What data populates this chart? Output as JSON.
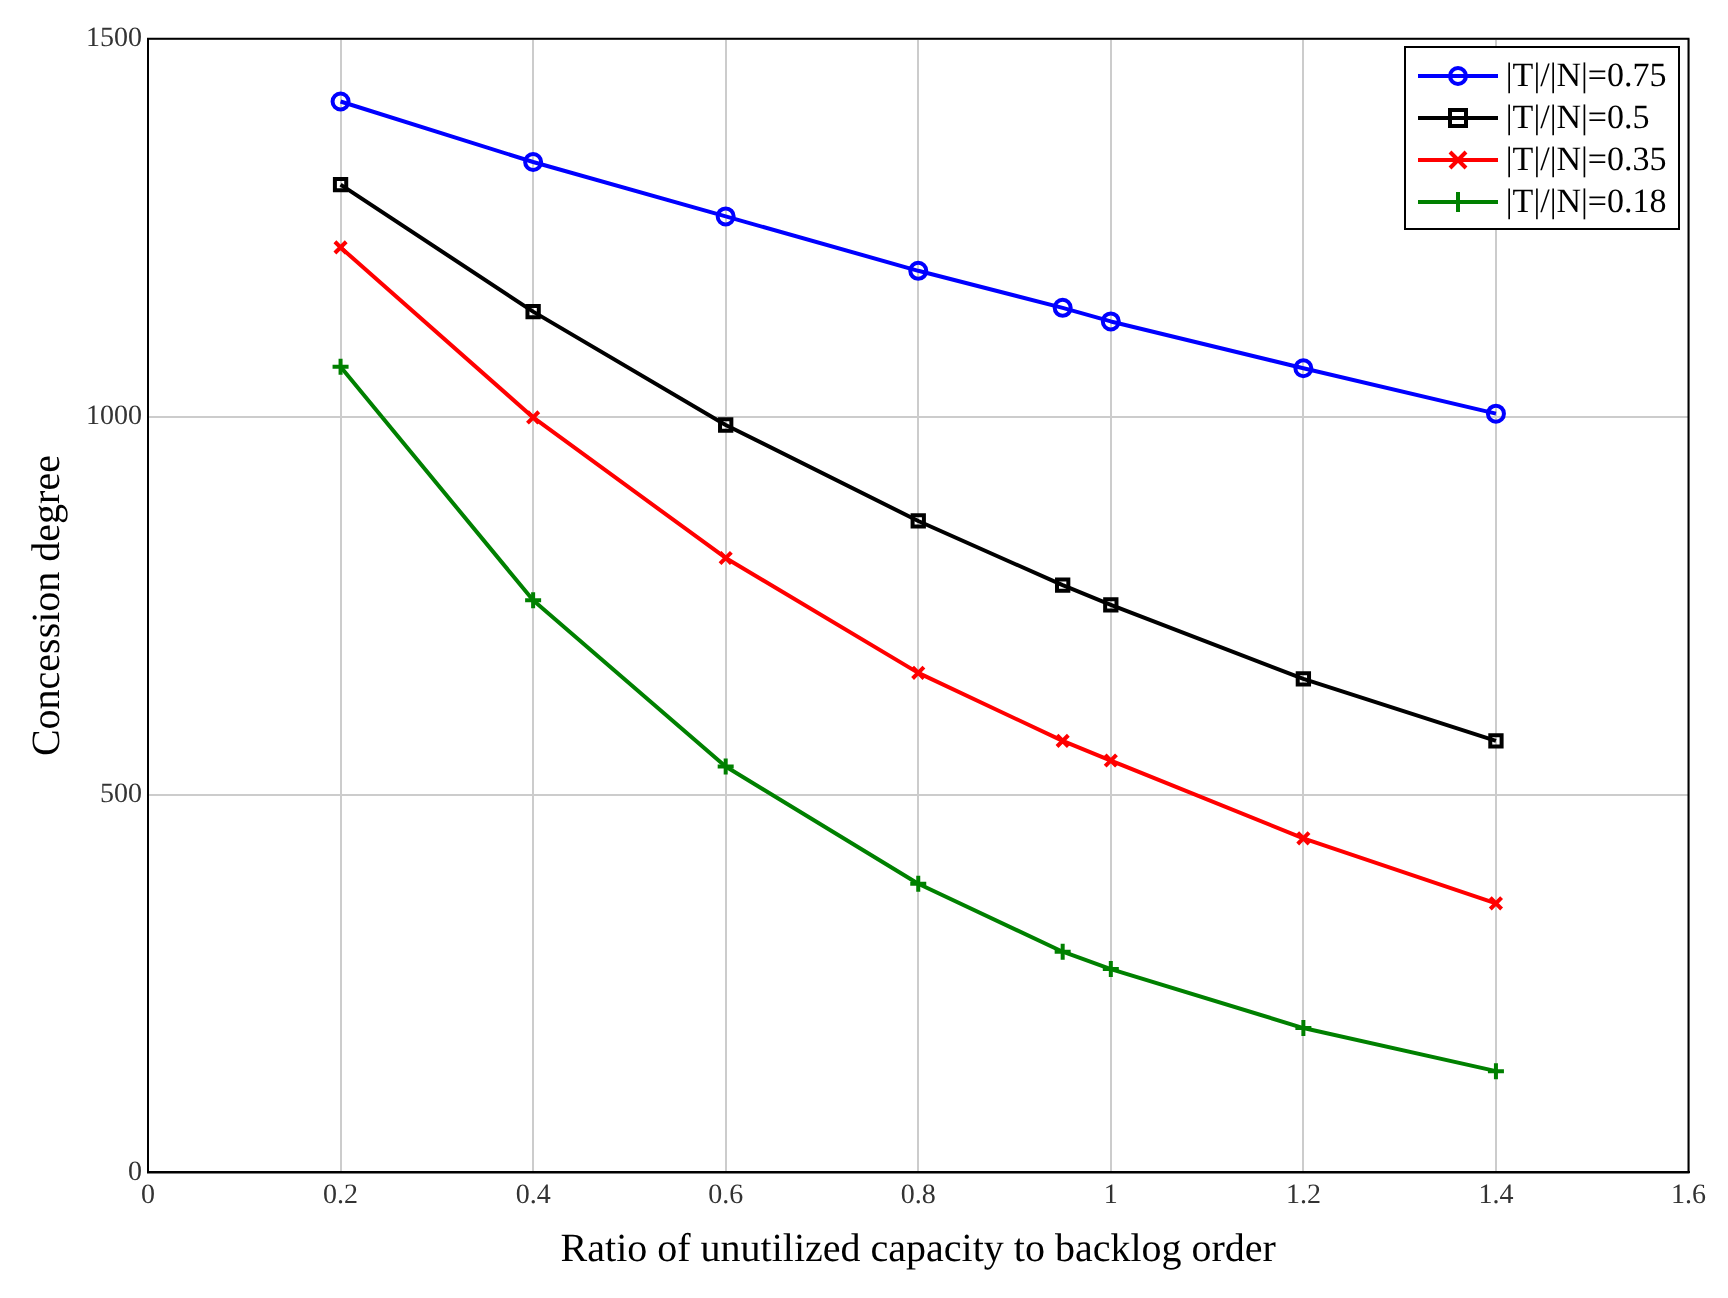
{
  "chart_data": {
    "type": "line",
    "xlabel": "Ratio of unutilized capacity to backlog order",
    "ylabel": "Concession degree",
    "x": [
      0.2,
      0.4,
      0.6,
      0.8,
      0.95,
      1,
      1.2,
      1.4
    ],
    "series": [
      {
        "name": "|T|/|N|=0.75",
        "color": "#0000ff",
        "marker": "circle",
        "values": [
          1417,
          1337,
          1265,
          1193,
          1144,
          1126,
          1064,
          1004
        ]
      },
      {
        "name": "|T|/|N|=0.5",
        "color": "#000000",
        "marker": "square",
        "values": [
          1307,
          1139,
          989,
          862,
          777,
          751,
          653,
          571
        ]
      },
      {
        "name": "|T|/|N|=0.35",
        "color": "#ff0000",
        "marker": "cross",
        "values": [
          1224,
          999,
          813,
          661,
          571,
          545,
          442,
          356
        ]
      },
      {
        "name": "|T|/|N|=0.18",
        "color": "#008000",
        "marker": "plus",
        "values": [
          1066,
          757,
          537,
          382,
          292,
          269,
          191,
          134
        ]
      }
    ],
    "xlim": [
      0,
      1.6
    ],
    "xticks": [
      0,
      0.2,
      0.4,
      0.6,
      0.8,
      1,
      1.2,
      1.4,
      1.6
    ],
    "ylim": [
      0,
      1500
    ],
    "yticks": [
      0,
      500,
      1000,
      1500
    ],
    "grid": true,
    "legend": "top right",
    "line_style": "solid"
  }
}
